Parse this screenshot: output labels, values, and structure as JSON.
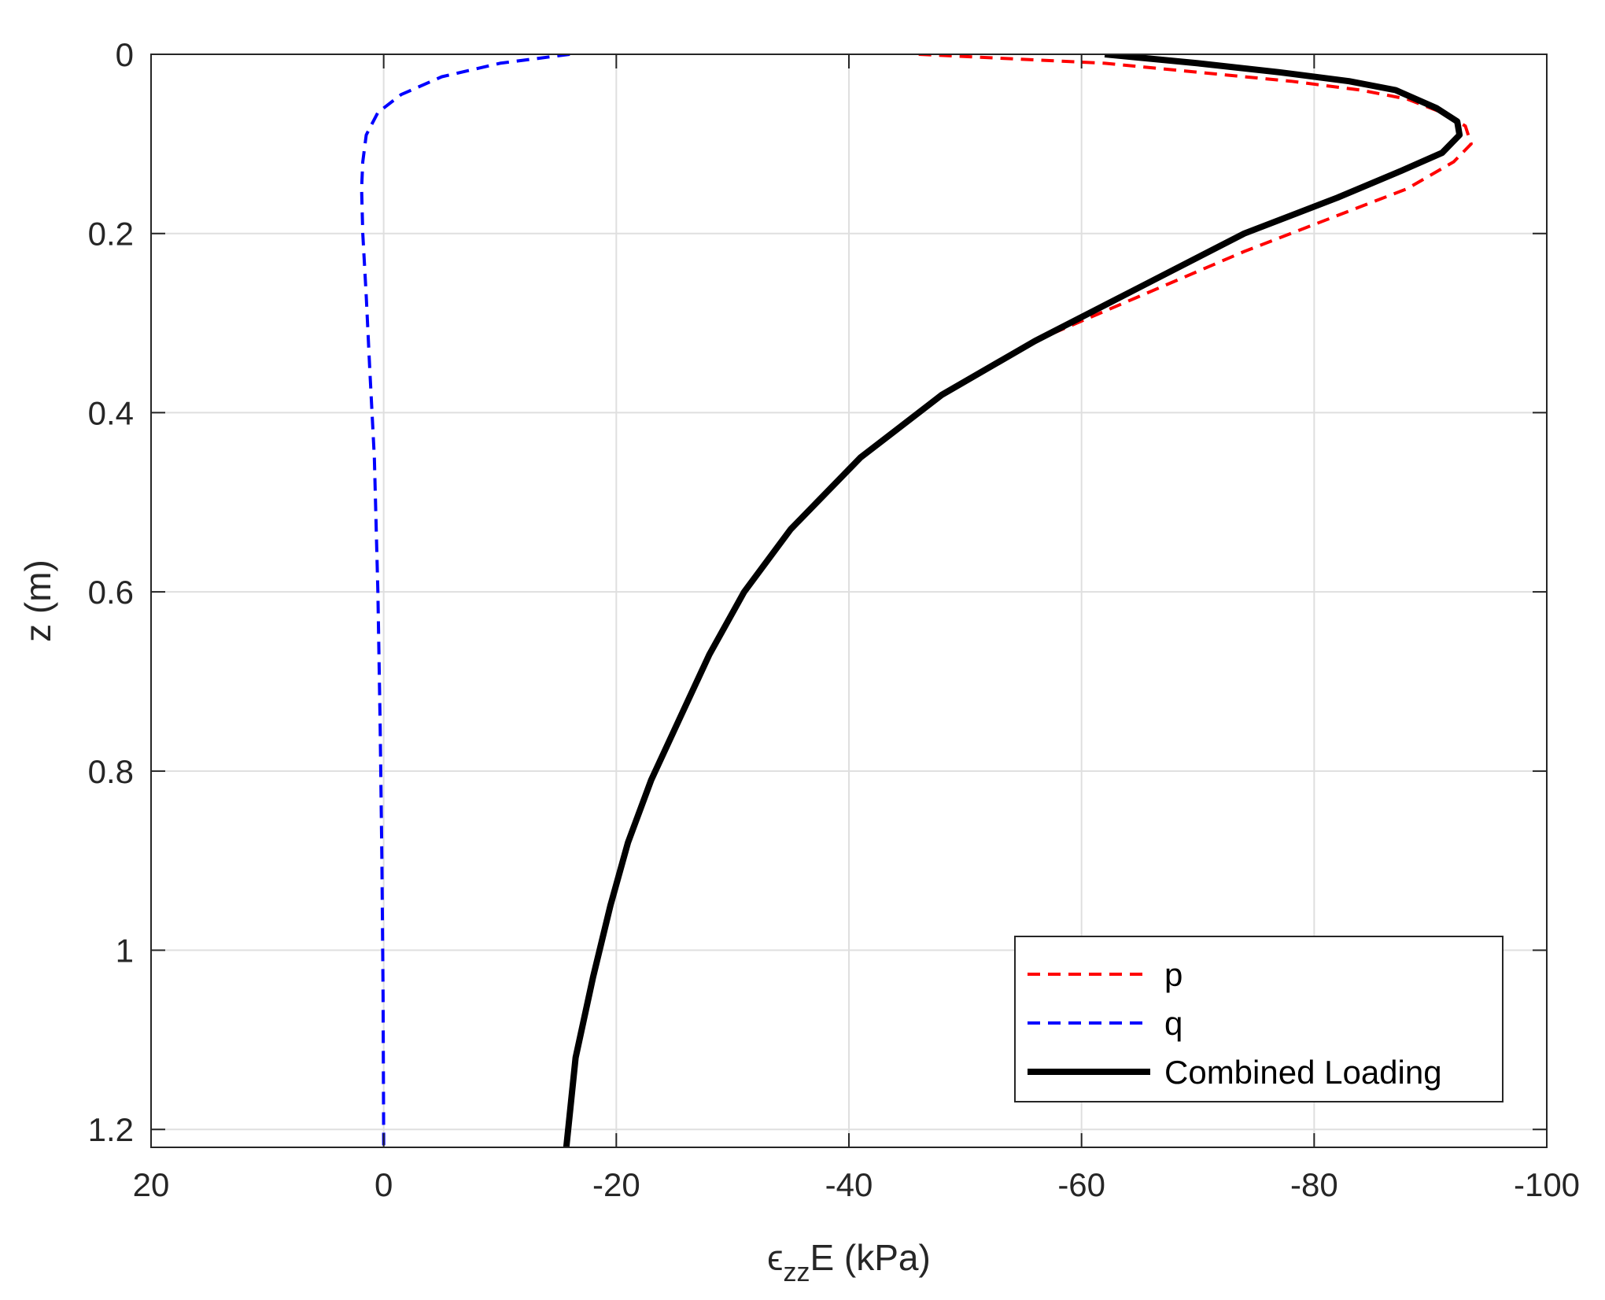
{
  "chart_data": {
    "type": "line",
    "title": "",
    "xlabel": {
      "symbol": "ϵ",
      "subscript": "zz",
      "rest": "E (kPa)"
    },
    "ylabel": "z (m)",
    "xlim": [
      20,
      -100
    ],
    "ylim": [
      1.22,
      0
    ],
    "x_reversed": true,
    "y_reversed": true,
    "grid": true,
    "legend_position": "bottom-right",
    "x_ticks": [
      20,
      0,
      -20,
      -40,
      -60,
      -80,
      -100
    ],
    "x_tick_labels": [
      "20",
      "0",
      "-20",
      "-40",
      "-60",
      "-80",
      "-100"
    ],
    "y_ticks": [
      0,
      0.2,
      0.4,
      0.6,
      0.8,
      1,
      1.2
    ],
    "y_tick_labels": [
      "0",
      "0.2",
      "0.4",
      "0.6",
      "0.8",
      "1",
      "1.2"
    ],
    "series": [
      {
        "name": "p",
        "color": "#ff0000",
        "style": "dashed",
        "x": [
          -46,
          -62,
          -70,
          -78,
          -84,
          -88,
          -91,
          -93,
          -93.5,
          -92,
          -88,
          -82,
          -74,
          -65,
          -56,
          -48,
          -41,
          -35,
          -31,
          -28,
          -25.5,
          -23,
          -21,
          -19.5,
          -18,
          -16.5,
          -15.7
        ],
        "z": [
          0,
          0.01,
          0.02,
          0.03,
          0.04,
          0.05,
          0.065,
          0.08,
          0.1,
          0.12,
          0.15,
          0.18,
          0.22,
          0.27,
          0.32,
          0.38,
          0.45,
          0.53,
          0.6,
          0.67,
          0.74,
          0.81,
          0.88,
          0.95,
          1.03,
          1.12,
          1.22
        ]
      },
      {
        "name": "q",
        "color": "#0000ff",
        "style": "dashed",
        "x": [
          -16,
          -10,
          -5,
          -1.5,
          0.5,
          1.5,
          1.8,
          1.9,
          1.8,
          1.5,
          1.2,
          0.8,
          0.5,
          0.3,
          0.15,
          0.05,
          0
        ],
        "z": [
          0,
          0.01,
          0.025,
          0.045,
          0.065,
          0.09,
          0.12,
          0.15,
          0.2,
          0.27,
          0.35,
          0.45,
          0.6,
          0.75,
          0.9,
          1.05,
          1.22
        ]
      },
      {
        "name": "Combined Loading",
        "color": "#000000",
        "style": "solid",
        "x": [
          -62,
          -70,
          -77,
          -83,
          -87,
          -90.5,
          -92.3,
          -92.5,
          -91,
          -87.5,
          -82,
          -74,
          -65,
          -56,
          -48,
          -41,
          -35,
          -31,
          -28,
          -25.5,
          -23,
          -21,
          -19.5,
          -18,
          -16.5,
          -15.7
        ],
        "z": [
          0,
          0.01,
          0.02,
          0.03,
          0.04,
          0.06,
          0.075,
          0.09,
          0.11,
          0.13,
          0.16,
          0.2,
          0.26,
          0.32,
          0.38,
          0.45,
          0.53,
          0.6,
          0.67,
          0.74,
          0.81,
          0.88,
          0.95,
          1.03,
          1.12,
          1.22
        ]
      }
    ]
  }
}
